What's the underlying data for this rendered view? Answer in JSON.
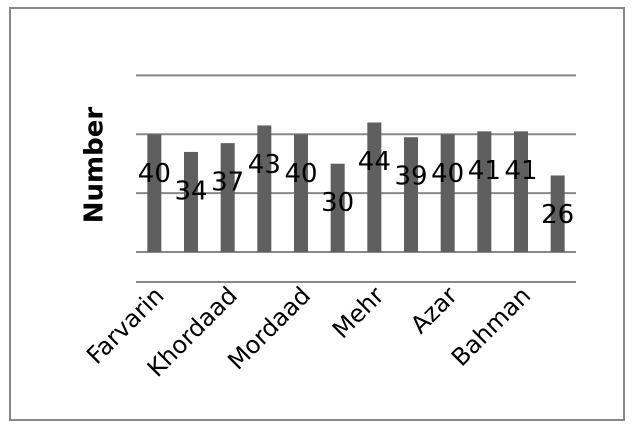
{
  "chart_data": {
    "type": "bar",
    "y_label": "Number",
    "categories": [
      "Farvarin",
      null,
      "Khordaad",
      null,
      "Mordaad",
      null,
      "Mehr",
      null,
      "Azar",
      null,
      "Bahman",
      null
    ],
    "values": [
      40,
      34,
      37,
      43,
      40,
      30,
      44,
      39,
      40,
      41,
      41,
      26
    ],
    "color": "#5f5f5f",
    "ylim": [
      0,
      70
    ],
    "yticks": [
      0,
      20,
      40,
      60
    ],
    "grid": true
  }
}
